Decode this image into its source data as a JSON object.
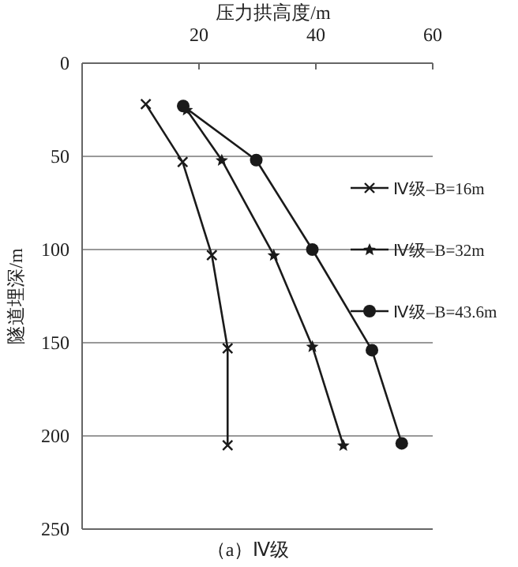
{
  "chart_data": {
    "type": "line",
    "xlabel": "压力拱高度/m",
    "ylabel": "隧道埋深/m",
    "xlim": [
      0,
      60
    ],
    "xticks": [
      20,
      40,
      60
    ],
    "ylim": [
      250,
      0
    ],
    "yticks": [
      0,
      50,
      100,
      150,
      200,
      250
    ],
    "grid": "y",
    "legend": "right",
    "line_style": "solid",
    "annotations": [
      "（a）Ⅳ级"
    ],
    "series": [
      {
        "name": "Ⅳ级–B=16m",
        "color": "#1a1a1a",
        "marker": "cross",
        "x": [
          10.9,
          17.2,
          22.2,
          24.9,
          24.9
        ],
        "values": [
          22,
          53,
          103,
          153,
          205
        ]
      },
      {
        "name": "Ⅳ级–B=32m",
        "color": "#1a1a1a",
        "marker": "star",
        "x": [
          17.9,
          23.9,
          32.8,
          39.4,
          44.7
        ],
        "values": [
          25,
          52,
          103,
          152,
          205
        ]
      },
      {
        "name": "Ⅳ级–B=43.6m",
        "color": "#1a1a1a",
        "marker": "circle",
        "x": [
          17.3,
          29.8,
          39.4,
          49.6,
          54.7
        ],
        "values": [
          23,
          52,
          100,
          154,
          204
        ]
      }
    ]
  }
}
